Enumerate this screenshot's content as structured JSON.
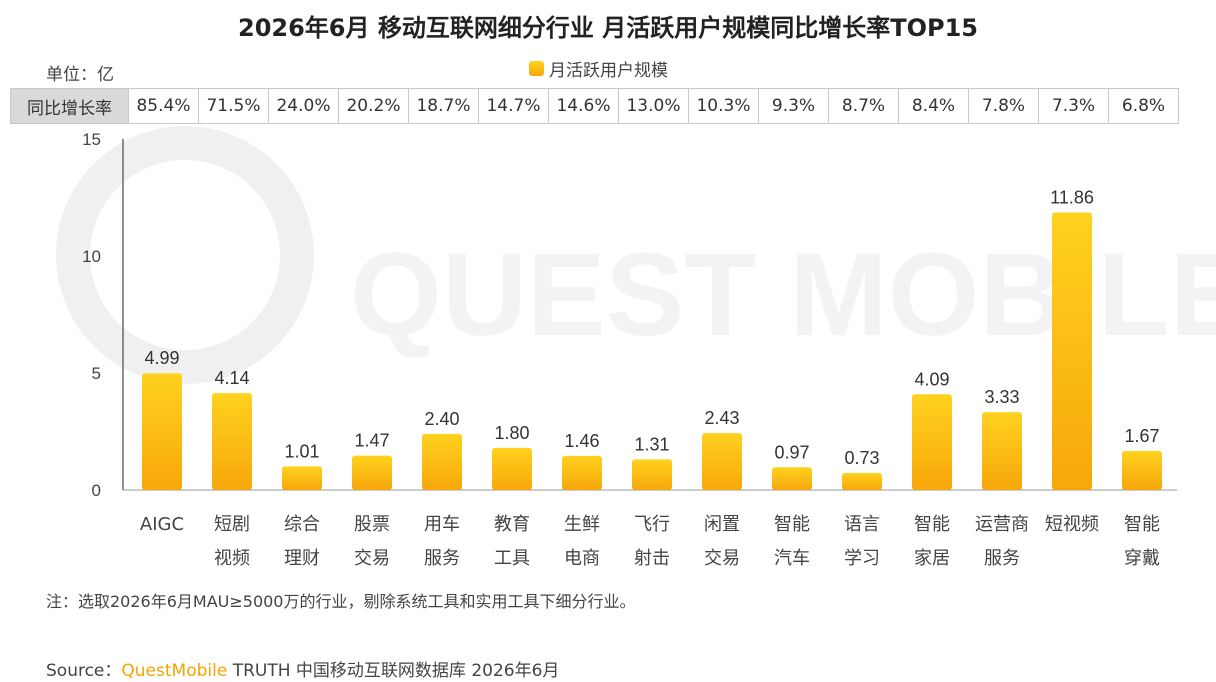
{
  "title": "2026年6月 移动互联网细分行业 月活跃用户规模同比增长率TOP15",
  "unit_label": "单位：亿",
  "legend_label": "月活跃用户规模",
  "growth_row": {
    "header": "同比增长率",
    "values": [
      "85.4%",
      "71.5%",
      "24.0%",
      "20.2%",
      "18.7%",
      "14.7%",
      "14.6%",
      "13.0%",
      "10.3%",
      "9.3%",
      "8.7%",
      "8.4%",
      "7.8%",
      "7.3%",
      "6.8%"
    ]
  },
  "watermark": "QUEST MOBILE",
  "note": "注：选取2026年6月MAU≥5000万的行业，剔除系统工具和实用工具下细分行业。",
  "source": {
    "prefix": "Source：",
    "brand": "QuestMobile",
    "suffix": " TRUTH 中国移动互联网数据库 2026年6月"
  },
  "colors": {
    "bar_top": "#ffd21f",
    "bar_bottom": "#f7a70a",
    "brand": "#f5a300"
  },
  "chart_data": {
    "type": "bar",
    "categories": [
      [
        "AIGC"
      ],
      [
        "短剧",
        "视频"
      ],
      [
        "综合",
        "理财"
      ],
      [
        "股票",
        "交易"
      ],
      [
        "用车",
        "服务"
      ],
      [
        "教育",
        "工具"
      ],
      [
        "生鲜",
        "电商"
      ],
      [
        "飞行",
        "射击"
      ],
      [
        "闲置",
        "交易"
      ],
      [
        "智能",
        "汽车"
      ],
      [
        "语言",
        "学习"
      ],
      [
        "智能",
        "家居"
      ],
      [
        "运营商",
        "服务"
      ],
      [
        "短视频"
      ],
      [
        "智能",
        "穿戴"
      ]
    ],
    "series": [
      {
        "name": "月活跃用户规模",
        "values": [
          4.99,
          4.14,
          1.01,
          1.47,
          2.4,
          1.8,
          1.46,
          1.31,
          2.43,
          0.97,
          0.73,
          4.09,
          3.33,
          11.86,
          1.67
        ],
        "labels": [
          "4.99",
          "4.14",
          "1.01",
          "1.47",
          "2.40",
          "1.80",
          "1.46",
          "1.31",
          "2.43",
          "0.97",
          "0.73",
          "4.09",
          "3.33",
          "11.86",
          "1.67"
        ]
      }
    ],
    "ylim": [
      0,
      15
    ],
    "yticks": [
      0,
      5,
      10,
      15
    ],
    "grid": false,
    "legend": "top-center"
  }
}
